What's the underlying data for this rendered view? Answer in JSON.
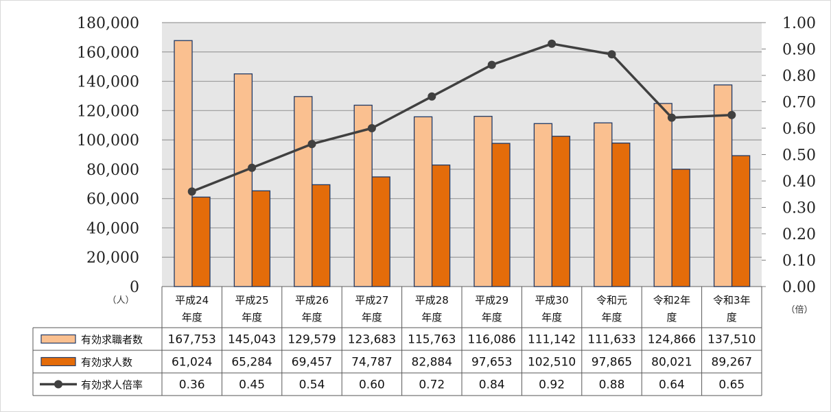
{
  "chart_data": {
    "type": "bar",
    "categories": [
      [
        "平成24",
        "年度"
      ],
      [
        "平成25",
        "年度"
      ],
      [
        "平成26",
        "年度"
      ],
      [
        "平成27",
        "年度"
      ],
      [
        "平成28",
        "年度"
      ],
      [
        "平成29",
        "年度"
      ],
      [
        "平成30",
        "年度"
      ],
      [
        "令和元",
        "年度"
      ],
      [
        "令和2年",
        "度"
      ],
      [
        "令和3年",
        "度"
      ]
    ],
    "series": [
      {
        "name": "有効求職者数",
        "type": "bar",
        "axis": "left",
        "color": "#fac090",
        "values": [
          167753,
          145043,
          129579,
          123683,
          115763,
          116086,
          111142,
          111633,
          124866,
          137510
        ]
      },
      {
        "name": "有効求人数",
        "type": "bar",
        "axis": "left",
        "color": "#e46c0a",
        "values": [
          61024,
          65284,
          69457,
          74787,
          82884,
          97653,
          102510,
          97865,
          80021,
          89267
        ]
      },
      {
        "name": "有効求人倍率",
        "type": "line",
        "axis": "right",
        "color": "#404040",
        "values": [
          0.36,
          0.45,
          0.54,
          0.6,
          0.72,
          0.84,
          0.92,
          0.88,
          0.64,
          0.65
        ]
      }
    ],
    "table_cells": [
      [
        "167,753",
        "145,043",
        "129,579",
        "123,683",
        "115,763",
        "116,086",
        "111,142",
        "111,633",
        "124,866",
        "137,510"
      ],
      [
        "61,024",
        "65,284",
        "69,457",
        "74,787",
        "82,884",
        "97,653",
        "102,510",
        "97,865",
        "80,021",
        "89,267"
      ],
      [
        "0.36",
        "0.45",
        "0.54",
        "0.60",
        "0.72",
        "0.84",
        "0.92",
        "0.88",
        "0.64",
        "0.65"
      ]
    ],
    "left_axis": {
      "min": 0,
      "max": 180000,
      "step": 20000,
      "unit": "（人）",
      "ticks": [
        "0",
        "20,000",
        "40,000",
        "60,000",
        "80,000",
        "100,000",
        "120,000",
        "140,000",
        "160,000",
        "180,000"
      ]
    },
    "right_axis": {
      "min": 0,
      "max": 1.0,
      "step": 0.1,
      "unit": "（倍）",
      "ticks": [
        "0.00",
        "0.10",
        "0.20",
        "0.30",
        "0.40",
        "0.50",
        "0.60",
        "0.70",
        "0.80",
        "0.90",
        "1.00"
      ]
    },
    "grid": true,
    "legend": "data-table-left"
  }
}
